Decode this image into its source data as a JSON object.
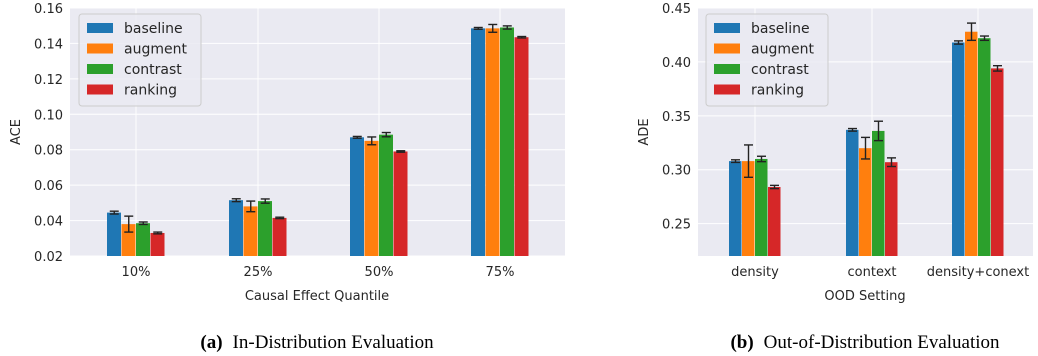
{
  "chart_data": [
    {
      "type": "bar",
      "categories": [
        "10%",
        "25%",
        "50%",
        "75%"
      ],
      "series": [
        {
          "name": "baseline",
          "values": [
            0.0445,
            0.0515,
            0.087,
            0.1485
          ],
          "errors": [
            0.0008,
            0.0008,
            0.0005,
            0.0005
          ]
        },
        {
          "name": "augment",
          "values": [
            0.038,
            0.048,
            0.085,
            0.1485
          ],
          "errors": [
            0.0045,
            0.003,
            0.0022,
            0.0022
          ]
        },
        {
          "name": "contrast",
          "values": [
            0.0385,
            0.051,
            0.0885,
            0.149
          ],
          "errors": [
            0.0007,
            0.0012,
            0.0012,
            0.0009
          ]
        },
        {
          "name": "ranking",
          "values": [
            0.033,
            0.0415,
            0.079,
            0.1435
          ],
          "errors": [
            0.0005,
            0.0004,
            0.0004,
            0.0004
          ]
        }
      ],
      "xlabel": "Causal Effect Quantile",
      "ylabel": "ACE",
      "ylim": [
        0.02,
        0.16
      ],
      "yticks": [
        "0.02",
        "0.04",
        "0.06",
        "0.08",
        "0.10",
        "0.12",
        "0.14",
        "0.16"
      ],
      "grid": true,
      "legend": "top-left",
      "caption_label": "(a)",
      "caption_text": "In-Distribution Evaluation"
    },
    {
      "type": "bar",
      "categories": [
        "density",
        "context",
        "density+conext"
      ],
      "series": [
        {
          "name": "baseline",
          "values": [
            0.308,
            0.337,
            0.418
          ],
          "errors": [
            0.0012,
            0.0012,
            0.0015
          ]
        },
        {
          "name": "augment",
          "values": [
            0.308,
            0.32,
            0.428
          ],
          "errors": [
            0.015,
            0.01,
            0.008
          ]
        },
        {
          "name": "contrast",
          "values": [
            0.31,
            0.336,
            0.422
          ],
          "errors": [
            0.0025,
            0.009,
            0.002
          ]
        },
        {
          "name": "ranking",
          "values": [
            0.284,
            0.307,
            0.394
          ],
          "errors": [
            0.0015,
            0.004,
            0.0025
          ]
        }
      ],
      "xlabel": "OOD Setting",
      "ylabel": "ADE",
      "ylim": [
        0.22,
        0.45
      ],
      "yticks": [
        "0.25",
        "0.30",
        "0.35",
        "0.40",
        "0.45"
      ],
      "grid": true,
      "legend": "top-left",
      "caption_label": "(b)",
      "caption_text": "Out-of-Distribution Evaluation"
    }
  ],
  "colors": {
    "baseline": "#1f77b4",
    "augment": "#ff7f0e",
    "contrast": "#2ca02c",
    "ranking": "#d62728",
    "panel_bg": "#eaeaf2",
    "grid": "#ffffff"
  }
}
